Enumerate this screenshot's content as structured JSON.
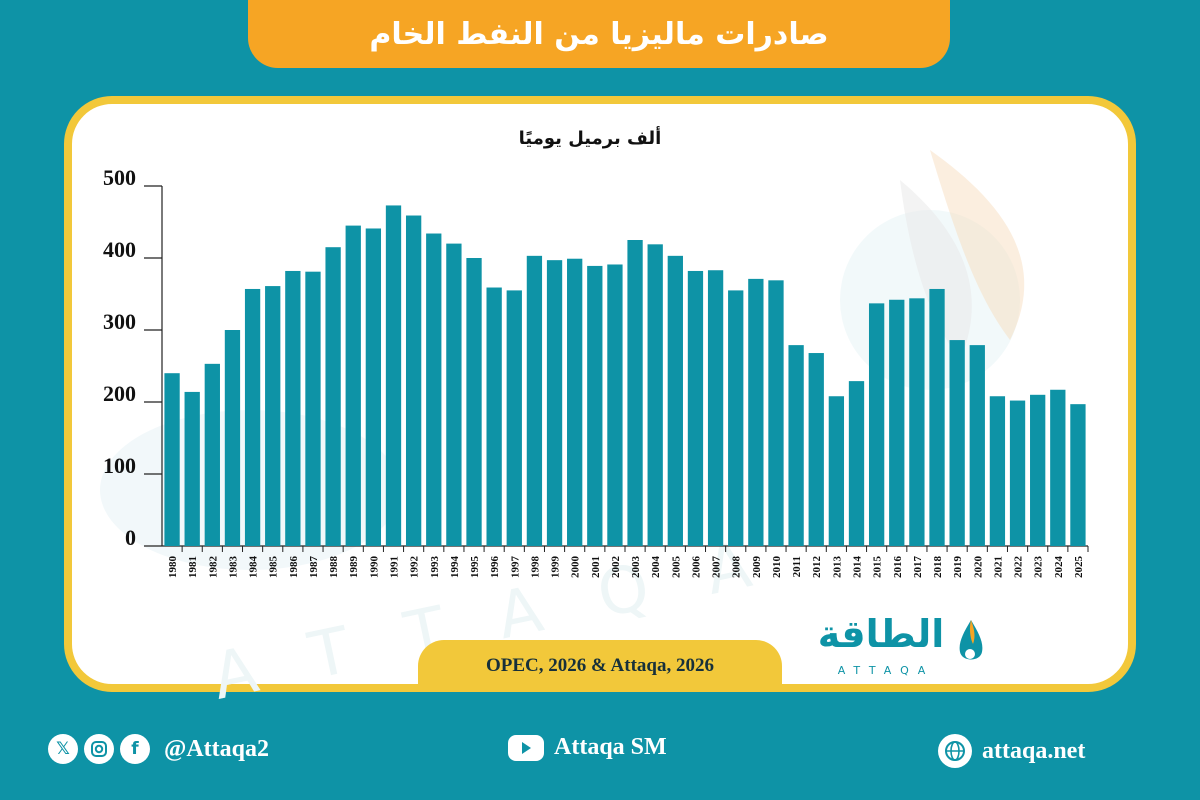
{
  "title": "صادرات ماليزيا من النفط الخام",
  "source": "OPEC, 2026 & Attaqa, 2026",
  "logo": {
    "arabic": "الطاقة",
    "latin": "ATTAQA"
  },
  "footer": {
    "handle": "@Attaqa2",
    "youtube": "Attaqa SM",
    "website": "attaqa.net",
    "icons": [
      "x-icon",
      "instagram-icon",
      "facebook-icon",
      "youtube-icon",
      "globe-icon"
    ]
  },
  "colors": {
    "background": "#0e93a6",
    "bar": "#0e93a6",
    "banner": "#f6a524",
    "border": "#f2c83a"
  },
  "chart_data": {
    "type": "bar",
    "unit_label": "ألف برميل يوميًا",
    "categories": [
      "1980",
      "1981",
      "1982",
      "1983",
      "1984",
      "1985",
      "1986",
      "1987",
      "1988",
      "1989",
      "1990",
      "1991",
      "1992",
      "1993",
      "1994",
      "1995",
      "1996",
      "1997",
      "1998",
      "1999",
      "2000",
      "2001",
      "2002",
      "2003",
      "2004",
      "2005",
      "2006",
      "2007",
      "2008",
      "2009",
      "2010",
      "2011",
      "2012",
      "2013",
      "2014",
      "2015",
      "2016",
      "2017",
      "2018",
      "2019",
      "2020",
      "2021",
      "2022",
      "2023",
      "2024",
      "2025"
    ],
    "values": [
      240,
      214,
      253,
      300,
      357,
      361,
      382,
      381,
      415,
      445,
      441,
      473,
      459,
      434,
      420,
      400,
      359,
      355,
      403,
      397,
      399,
      389,
      391,
      425,
      419,
      403,
      382,
      383,
      355,
      371,
      369,
      279,
      268,
      208,
      229,
      337,
      342,
      344,
      357,
      286,
      279,
      208,
      202,
      210,
      217,
      197
    ],
    "yticks": [
      0,
      100,
      200,
      300,
      400,
      500
    ],
    "ylim": [
      0,
      500
    ],
    "grid": false
  }
}
